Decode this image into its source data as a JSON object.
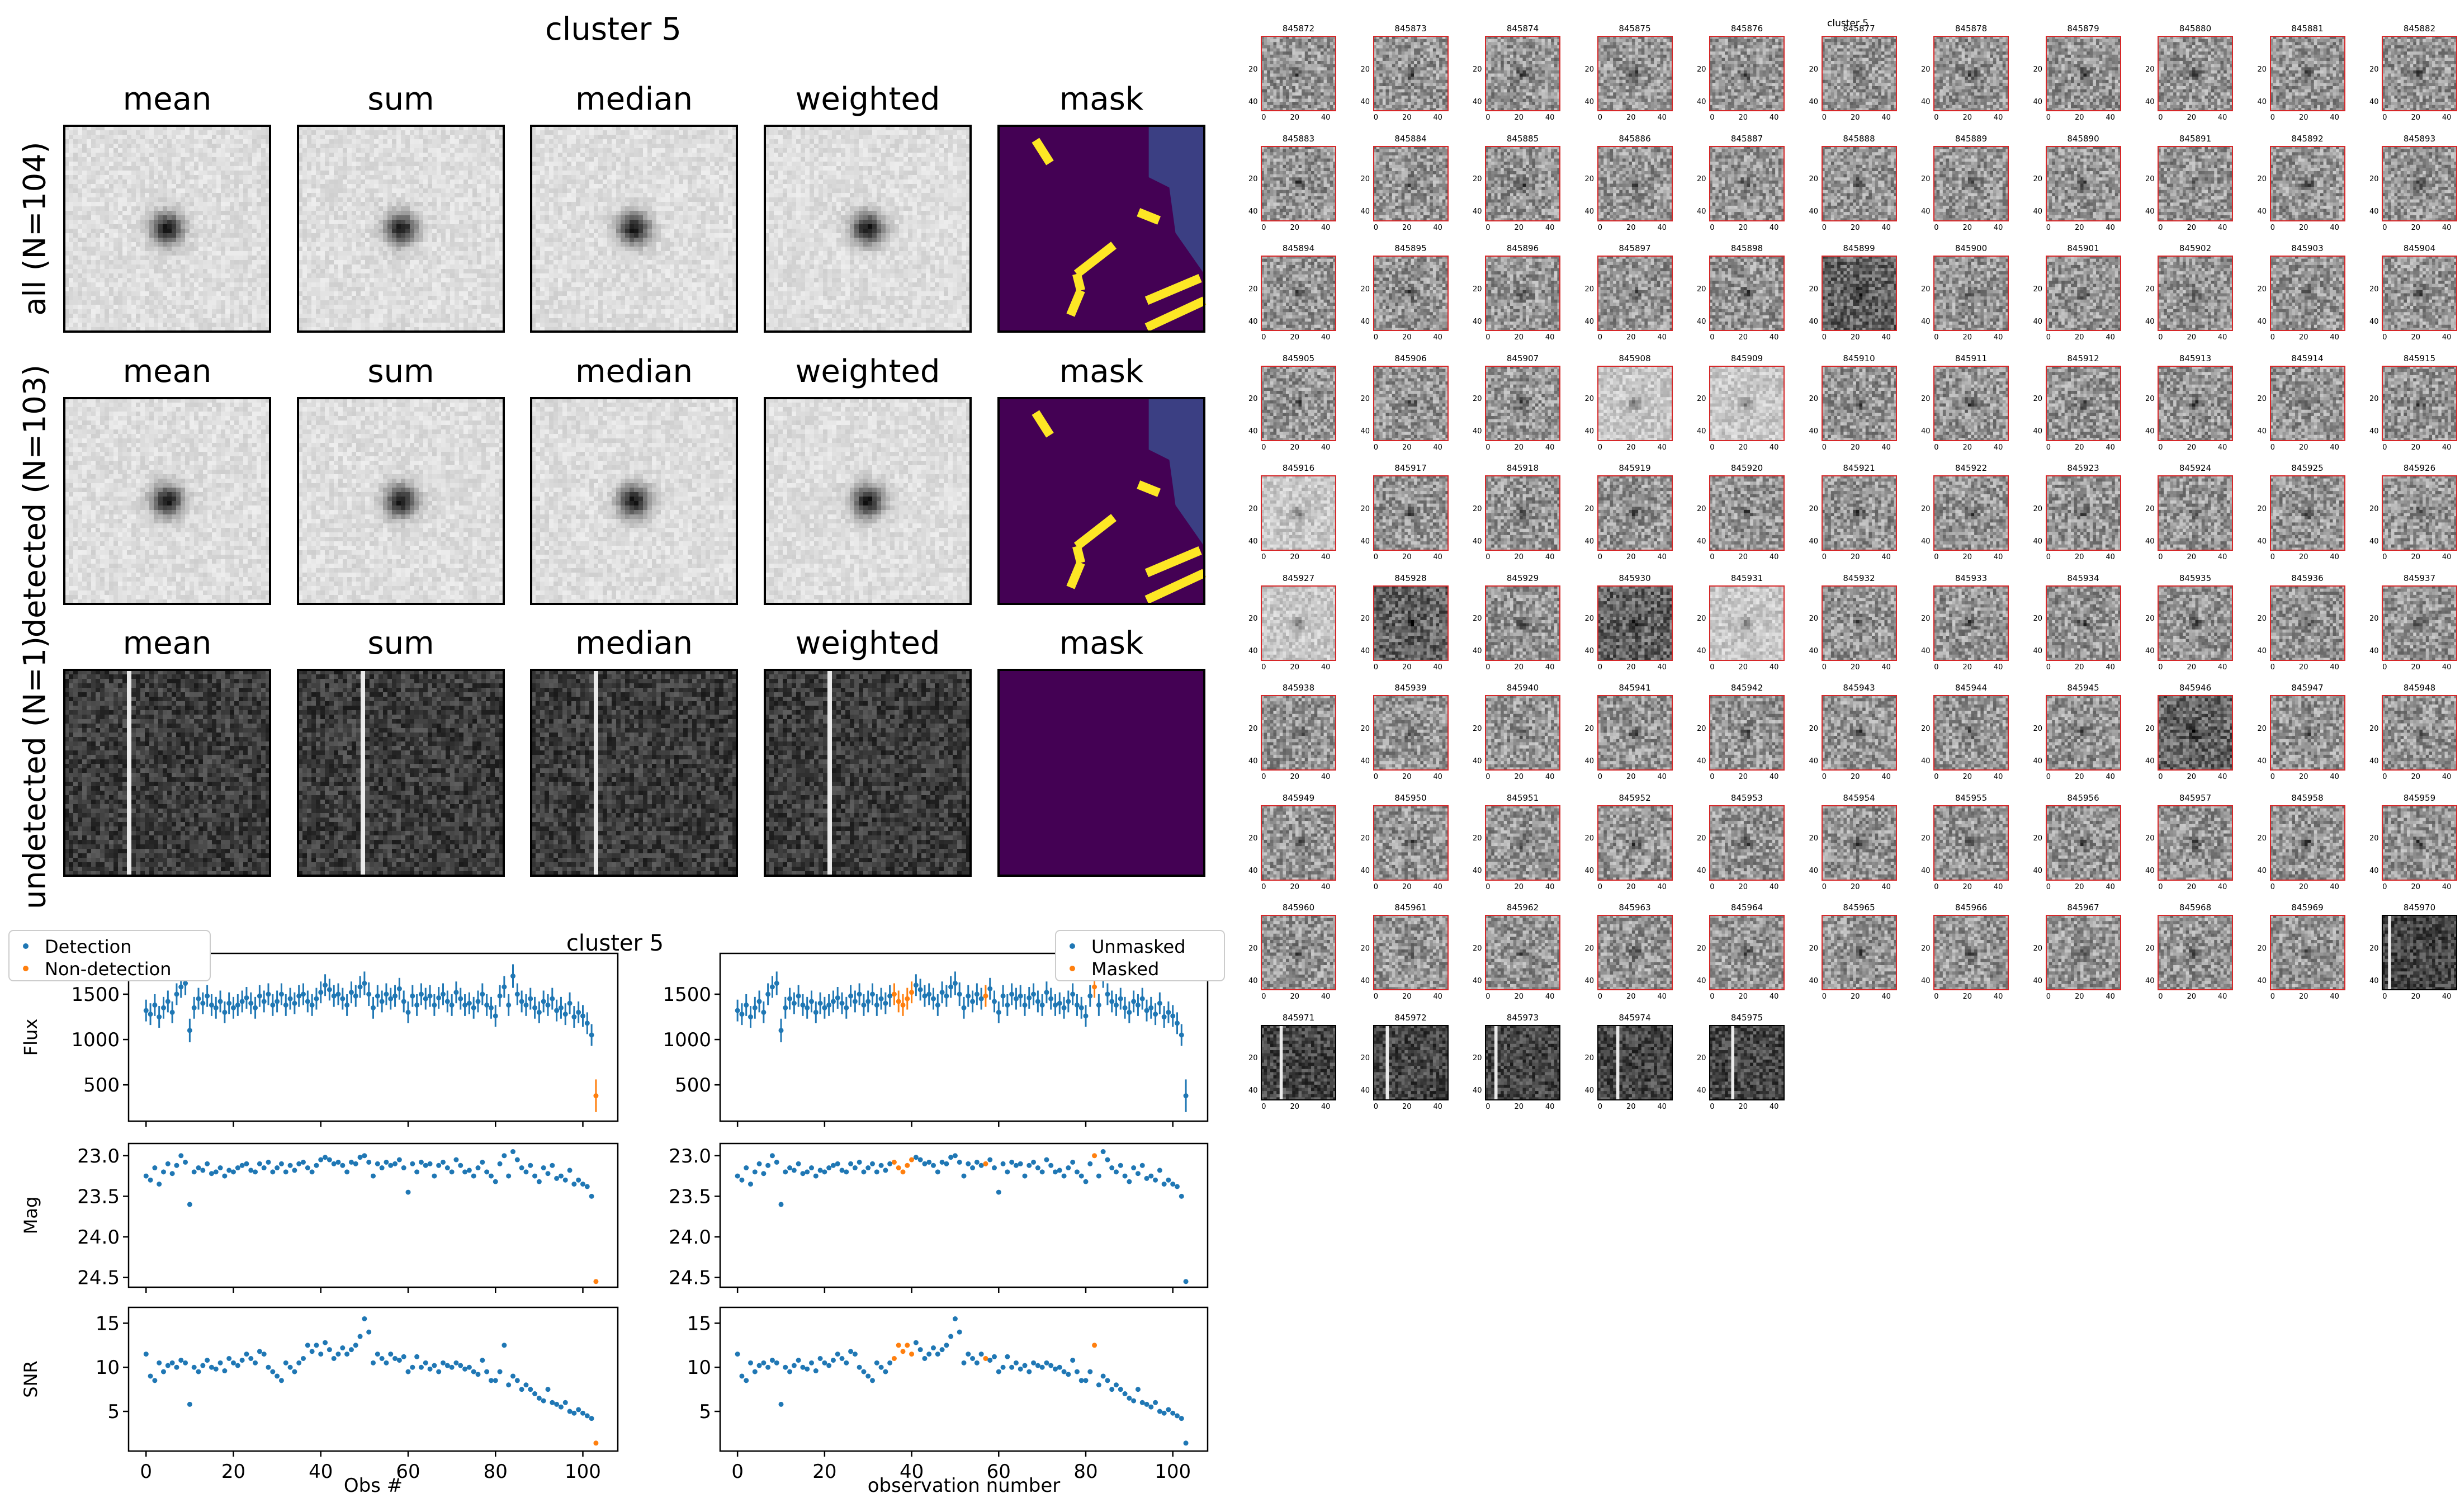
{
  "figure_title": "cluster 5",
  "rows": [
    {
      "label": "all (N=104)",
      "type": "star",
      "panels": [
        "mean",
        "sum",
        "median",
        "weighted",
        "mask"
      ]
    },
    {
      "label": "detected (N=103)",
      "type": "star",
      "panels": [
        "mean",
        "sum",
        "median",
        "weighted",
        "mask"
      ]
    },
    {
      "label": "undetected (N=1)",
      "type": "noise",
      "panels": [
        "mean",
        "sum",
        "median",
        "weighted",
        "mask"
      ]
    }
  ],
  "colors": {
    "detection": "#1f77b4",
    "non_detection": "#ff7f0e",
    "mask_bg": "#440154",
    "mask_mid": "#3b3f83",
    "mask_fg": "#fde725",
    "stamp_border": "#d62728"
  },
  "lightcurve": {
    "title": "cluster 5",
    "left_legend": [
      "Detection",
      "Non-detection"
    ],
    "right_legend": [
      "Unmasked",
      "Masked"
    ],
    "left_xlabel": "Obs #",
    "right_xlabel": "observation number",
    "ylabels": [
      "Flux",
      "Mag",
      "SNR"
    ],
    "xticks": [
      0,
      20,
      40,
      60,
      80,
      100
    ],
    "flux_ticks": [
      500,
      1000,
      1500
    ],
    "mag_ticks": [
      "23.0",
      "23.5",
      "24.0",
      "24.5"
    ],
    "snr_ticks": [
      5,
      10,
      15
    ]
  },
  "chart_data": [
    {
      "type": "scatter",
      "title": "cluster 5",
      "ylabel": "Flux",
      "xlabel": "",
      "xlim": [
        -4,
        108
      ],
      "ylim": [
        100,
        1950
      ],
      "x": [
        0,
        1,
        2,
        3,
        4,
        5,
        6,
        7,
        8,
        9,
        10,
        11,
        12,
        13,
        14,
        15,
        16,
        17,
        18,
        19,
        20,
        21,
        22,
        23,
        24,
        25,
        26,
        27,
        28,
        29,
        30,
        31,
        32,
        33,
        34,
        35,
        36,
        37,
        38,
        39,
        40,
        41,
        42,
        43,
        44,
        45,
        46,
        47,
        48,
        49,
        50,
        51,
        52,
        53,
        54,
        55,
        56,
        57,
        58,
        59,
        60,
        61,
        62,
        63,
        64,
        65,
        66,
        67,
        68,
        69,
        70,
        71,
        72,
        73,
        74,
        75,
        76,
        77,
        78,
        79,
        80,
        81,
        82,
        83,
        84,
        85,
        86,
        87,
        88,
        89,
        90,
        91,
        92,
        93,
        94,
        95,
        96,
        97,
        98,
        99,
        100,
        101,
        102,
        103
      ],
      "series": [
        {
          "name": "Detection",
          "values": [
            1320,
            1280,
            1380,
            1250,
            1350,
            1420,
            1300,
            1500,
            1580,
            1620,
            1100,
            1350,
            1450,
            1400,
            1480,
            1380,
            1350,
            1420,
            1300,
            1400,
            1350,
            1380,
            1420,
            1460,
            1400,
            1350,
            1480,
            1420,
            1500,
            1380,
            1420,
            1500,
            1380,
            1450,
            1400,
            1480,
            1500,
            1420,
            1380,
            1450,
            1520,
            1600,
            1550,
            1480,
            1500,
            1450,
            1380,
            1520,
            1480,
            1580,
            1620,
            1500,
            1350,
            1480,
            1420,
            1500,
            1450,
            1480,
            1560,
            1420,
            1300,
            1480,
            1380,
            1500,
            1450,
            1480,
            1380,
            1460,
            1500,
            1420,
            1380,
            1520,
            1450,
            1380,
            1400,
            1350,
            1420,
            1500,
            1380,
            1350,
            1260,
            1480,
            1580,
            1380,
            1700,
            1500,
            1420,
            1380,
            1450,
            1350,
            1300,
            1420,
            1380,
            1450,
            1320,
            1350,
            1280,
            1400,
            1250,
            1300,
            1260,
            1180,
            1050
          ],
          "errors": [
            120,
            120,
            120,
            120,
            120,
            120,
            120,
            120,
            120,
            130,
            130,
            120,
            120,
            120,
            120,
            120,
            120,
            120,
            120,
            120,
            120,
            120,
            120,
            120,
            120,
            120,
            120,
            120,
            120,
            120,
            120,
            120,
            120,
            120,
            120,
            120,
            120,
            120,
            120,
            120,
            120,
            120,
            120,
            120,
            120,
            120,
            120,
            120,
            120,
            120,
            130,
            130,
            120,
            120,
            120,
            120,
            120,
            120,
            120,
            120,
            120,
            120,
            120,
            120,
            120,
            120,
            120,
            120,
            120,
            120,
            120,
            120,
            120,
            120,
            120,
            120,
            120,
            120,
            120,
            120,
            120,
            120,
            120,
            120,
            130,
            120,
            120,
            120,
            120,
            120,
            120,
            120,
            120,
            120,
            120,
            120,
            120,
            120,
            120,
            120,
            120,
            120,
            120
          ]
        },
        {
          "name": "Non-detection",
          "x": [
            103
          ],
          "values": [
            380
          ],
          "errors": [
            180
          ]
        }
      ]
    },
    {
      "type": "scatter",
      "ylabel": "Mag",
      "xlabel": "",
      "ylim": [
        24.62,
        22.85
      ],
      "series": [
        {
          "name": "Detection",
          "values": [
            23.25,
            23.3,
            23.15,
            23.35,
            23.2,
            23.1,
            23.22,
            23.12,
            23.0,
            23.08,
            23.6,
            23.2,
            23.15,
            23.18,
            23.1,
            23.22,
            23.2,
            23.15,
            23.25,
            23.18,
            23.2,
            23.15,
            23.12,
            23.1,
            23.18,
            23.2,
            23.1,
            23.15,
            23.08,
            23.2,
            23.15,
            23.1,
            23.2,
            23.12,
            23.18,
            23.1,
            23.08,
            23.15,
            23.2,
            23.12,
            23.05,
            23.02,
            23.05,
            23.1,
            23.08,
            23.12,
            23.2,
            23.08,
            23.1,
            23.02,
            23.0,
            23.08,
            23.25,
            23.1,
            23.15,
            23.08,
            23.12,
            23.1,
            23.05,
            23.15,
            23.45,
            23.1,
            23.2,
            23.08,
            23.12,
            23.1,
            23.25,
            23.12,
            23.08,
            23.15,
            23.2,
            23.05,
            23.12,
            23.2,
            23.18,
            23.25,
            23.15,
            23.08,
            23.2,
            23.25,
            23.32,
            23.1,
            23.0,
            23.25,
            22.95,
            23.05,
            23.15,
            23.2,
            23.12,
            23.25,
            23.32,
            23.15,
            23.22,
            23.12,
            23.28,
            23.25,
            23.3,
            23.18,
            23.35,
            23.3,
            23.35,
            23.38,
            23.5
          ]
        },
        {
          "name": "Non-detection",
          "x": [
            103
          ],
          "values": [
            24.55
          ]
        }
      ]
    },
    {
      "type": "scatter",
      "ylabel": "SNR",
      "xlabel": "Obs #",
      "ylim": [
        0.5,
        16.8
      ],
      "series": [
        {
          "name": "Detection",
          "values": [
            11.5,
            9.0,
            8.5,
            10.5,
            9.5,
            10.2,
            10.5,
            10.0,
            10.8,
            10.5,
            5.8,
            10.0,
            9.5,
            10.2,
            10.8,
            10.0,
            9.8,
            10.5,
            9.6,
            11.0,
            10.5,
            10.2,
            10.8,
            11.5,
            11.0,
            10.5,
            11.8,
            11.5,
            10.0,
            9.5,
            9.0,
            8.5,
            10.5,
            10.0,
            9.5,
            10.5,
            11.0,
            12.5,
            11.8,
            12.5,
            11.5,
            12.8,
            12.0,
            11.0,
            11.5,
            12.2,
            11.5,
            12.0,
            12.5,
            13.5,
            15.5,
            14.0,
            10.5,
            11.5,
            11.0,
            10.5,
            11.5,
            11.0,
            10.8,
            11.2,
            9.5,
            10.0,
            11.2,
            10.0,
            10.5,
            9.8,
            10.2,
            9.5,
            10.5,
            10.2,
            10.0,
            10.5,
            10.2,
            9.8,
            10.0,
            9.5,
            9.2,
            10.8,
            9.5,
            8.5,
            8.5,
            9.5,
            12.5,
            8.0,
            9.0,
            8.5,
            7.5,
            8.0,
            7.5,
            7.0,
            6.5,
            6.2,
            7.5,
            6.0,
            5.8,
            5.5,
            6.0,
            5.0,
            4.8,
            5.2,
            4.8,
            4.5,
            4.2
          ]
        },
        {
          "name": "Non-detection",
          "x": [
            103
          ],
          "values": [
            1.4
          ]
        }
      ]
    }
  ],
  "masked_indices": [
    36,
    37,
    38,
    39,
    40,
    57,
    82
  ],
  "stamps": {
    "title": "cluster 5",
    "axis_ticks_x": [
      "0",
      "20",
      "40"
    ],
    "axis_ticks_y": [
      "20",
      "40"
    ],
    "ids": [
      "845872",
      "845873",
      "845874",
      "845875",
      "845876",
      "845877",
      "845878",
      "845879",
      "845880",
      "845881",
      "845882",
      "845883",
      "845884",
      "845885",
      "845886",
      "845887",
      "845888",
      "845889",
      "845890",
      "845891",
      "845892",
      "845893",
      "845894",
      "845895",
      "845896",
      "845897",
      "845898",
      "845899",
      "845900",
      "845901",
      "845902",
      "845903",
      "845904",
      "845905",
      "845906",
      "845907",
      "845908",
      "845909",
      "845910",
      "845911",
      "845912",
      "845913",
      "845914",
      "845915",
      "845916",
      "845917",
      "845918",
      "845919",
      "845920",
      "845921",
      "845922",
      "845923",
      "845924",
      "845925",
      "845926",
      "845927",
      "845928",
      "845929",
      "845930",
      "845931",
      "845932",
      "845933",
      "845934",
      "845935",
      "845936",
      "845937",
      "845938",
      "845939",
      "845940",
      "845941",
      "845942",
      "845943",
      "845944",
      "845945",
      "845946",
      "845947",
      "845948",
      "845949",
      "845950",
      "845951",
      "845952",
      "845953",
      "845954",
      "845955",
      "845956",
      "845957",
      "845958",
      "845959",
      "845960",
      "845961",
      "845962",
      "845963",
      "845964",
      "845965",
      "845966",
      "845967",
      "845968",
      "845969",
      "845970",
      "845971",
      "845972",
      "845973",
      "845974",
      "845975"
    ]
  }
}
